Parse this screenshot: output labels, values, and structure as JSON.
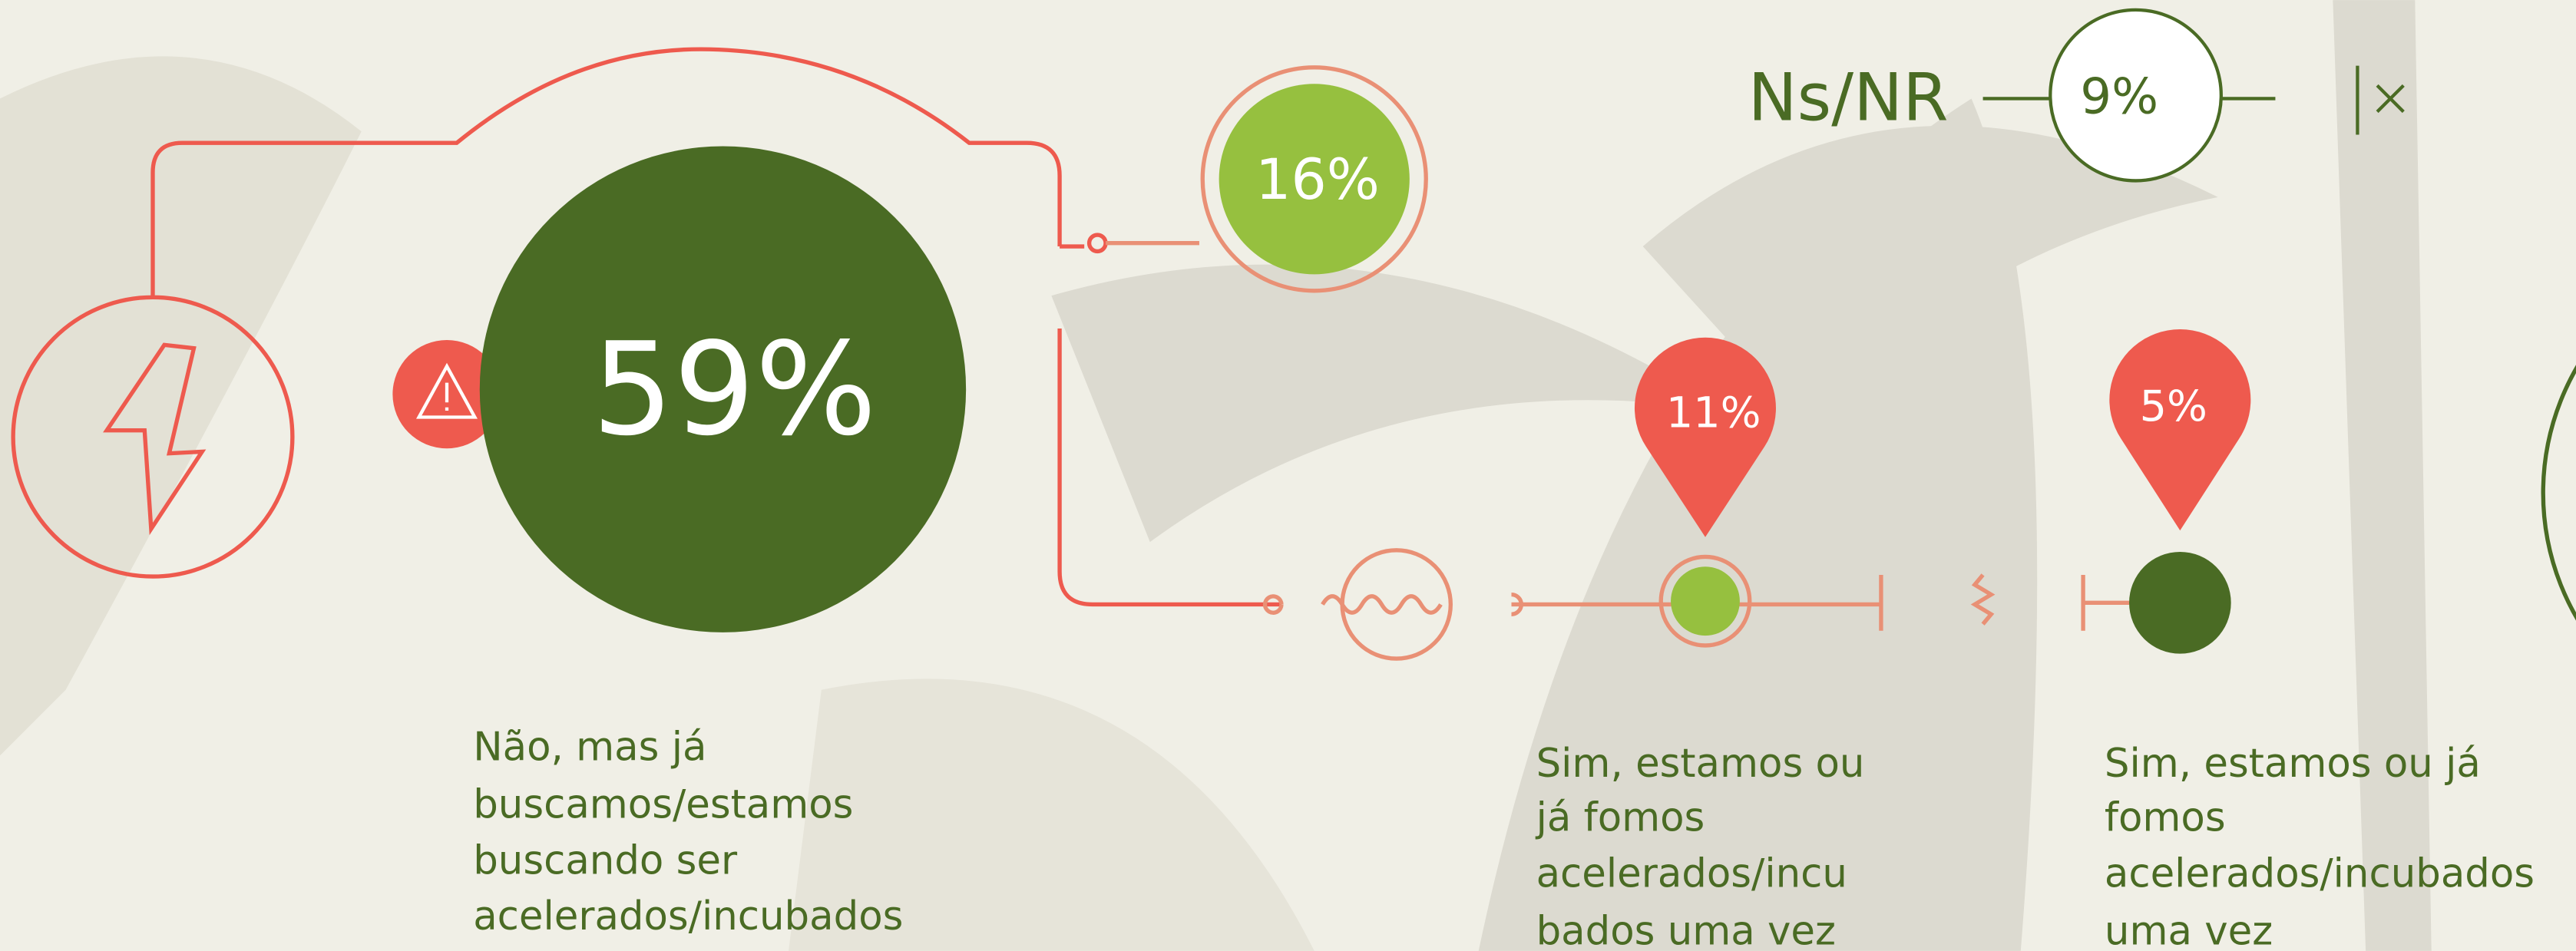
{
  "main": {
    "value": "59%",
    "label_lines": [
      "Não, mas já",
      "buscamos/estamos",
      "buscando ser",
      "acelerados/incubados"
    ]
  },
  "bubble": {
    "value": "16%"
  },
  "pins": [
    {
      "value": "11%",
      "label_lines": [
        "Sim, estamos ou",
        "já fomos",
        "acelerados/incu",
        "bados uma vez"
      ]
    },
    {
      "value": "5%",
      "label_lines": [
        "Sim, estamos ou já",
        "fomos",
        "acelerados/incubados",
        "uma vez"
      ]
    }
  ],
  "nsnr": {
    "label": "Ns/NR",
    "value": "9%"
  }
}
